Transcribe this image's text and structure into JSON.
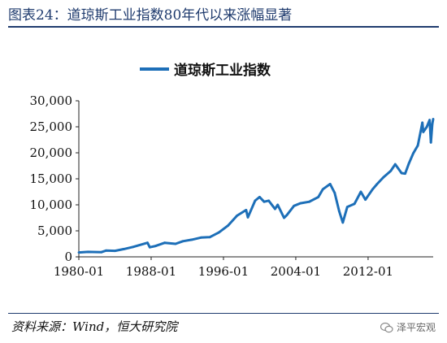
{
  "header": {
    "figure_title": "图表24：道琼斯工业指数80年代以来涨幅显著"
  },
  "footer": {
    "source": "资料来源：Wind，恒大研究院",
    "watermark": "泽平宏观"
  },
  "chart_data": {
    "type": "line",
    "title": "",
    "xlabel": "",
    "ylabel": "",
    "ylim": [
      0,
      30000
    ],
    "y_ticks": [
      0,
      5000,
      10000,
      15000,
      20000,
      25000,
      30000
    ],
    "y_tick_labels": [
      "0",
      "5,000",
      "10,000",
      "15,000",
      "20,000",
      "25,000",
      "30,000"
    ],
    "x_tick_labels": [
      "1980-01",
      "1988-01",
      "1996-01",
      "2004-01",
      "2012-01"
    ],
    "x_tick_years": [
      1980,
      1988,
      1996,
      2004,
      2012
    ],
    "xlim": [
      1980,
      2019.2
    ],
    "grid": false,
    "legend_position": "top-center",
    "color": "#1d6fb8",
    "series": [
      {
        "name": "道琼斯工业指数",
        "x": [
          1980.0,
          1981.0,
          1982.5,
          1983.0,
          1984.0,
          1985.0,
          1986.0,
          1987.6,
          1987.85,
          1988.5,
          1989.5,
          1990.7,
          1991.5,
          1992.5,
          1993.5,
          1994.5,
          1995.5,
          1996.5,
          1997.5,
          1998.5,
          1998.7,
          1999.5,
          2000.0,
          2000.5,
          2001.0,
          2001.7,
          2002.0,
          2002.7,
          2003.0,
          2003.8,
          2004.5,
          2005.5,
          2006.5,
          2007.0,
          2007.8,
          2008.3,
          2008.8,
          2009.2,
          2009.7,
          2010.5,
          2011.2,
          2011.7,
          2012.5,
          2013.0,
          2013.7,
          2014.5,
          2015.0,
          2015.7,
          2016.1,
          2016.5,
          2017.0,
          2017.5,
          2018.0,
          2018.1,
          2018.5,
          2018.8,
          2018.95,
          2019.1,
          2019.2
        ],
        "values": [
          850,
          950,
          900,
          1200,
          1150,
          1500,
          1900,
          2700,
          1850,
          2100,
          2700,
          2500,
          3000,
          3300,
          3700,
          3800,
          4700,
          6000,
          7900,
          9000,
          7600,
          10800,
          11500,
          10600,
          10800,
          9200,
          10000,
          7500,
          8000,
          9800,
          10300,
          10600,
          11500,
          13000,
          14000,
          12300,
          8800,
          6600,
          9600,
          10200,
          12500,
          11000,
          13000,
          14000,
          15300,
          16500,
          17800,
          16100,
          16000,
          17900,
          19900,
          21400,
          25800,
          24000,
          25000,
          26300,
          22000,
          25500,
          26500
        ]
      }
    ]
  }
}
